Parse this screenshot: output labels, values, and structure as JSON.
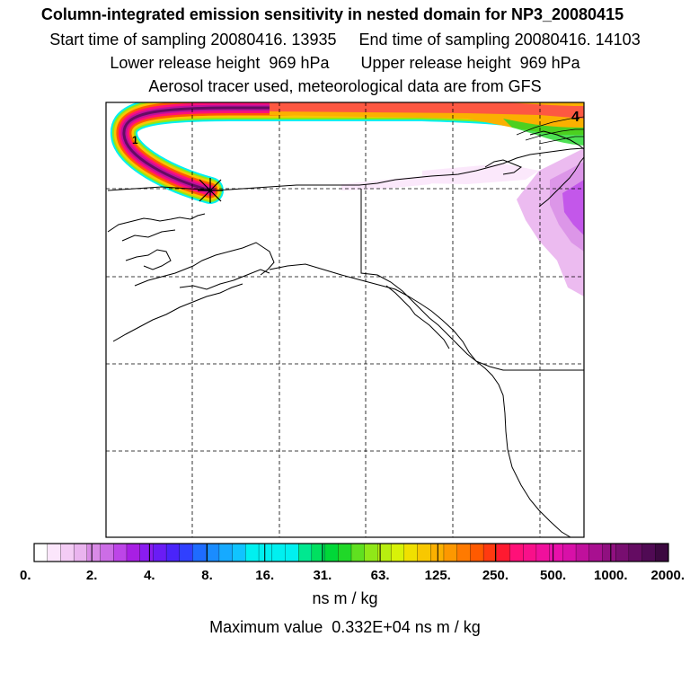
{
  "header": {
    "title": "Column-integrated emission sensitivity in nested domain for NP3_20080415",
    "sampling_line": "Start time of sampling 20080416. 13935     End time of sampling 20080416. 14103",
    "release_line": "Lower release height  969 hPa       Upper release height  969 hPa",
    "tracer_line": "Aerosol tracer used, meteorological data are from GFS"
  },
  "map": {
    "corner_label_left": "1",
    "corner_label_right": "4",
    "release_marker": "release-point"
  },
  "colorbar": {
    "tick_labels": [
      "0.",
      "2.",
      "4.",
      "8.",
      "16.",
      "31.",
      "63.",
      "125.",
      "250.",
      "500.",
      "1000.",
      "2000."
    ],
    "colors": [
      "#ffffff",
      "#fbe6fb",
      "#f4ccf5",
      "#eab4ef",
      "#d98be6",
      "#cc6de6",
      "#bd45e8",
      "#a81fe4",
      "#8a1cf0",
      "#6a1cf5",
      "#4a24fa",
      "#3040ff",
      "#1e6cff",
      "#1a8cff",
      "#16aaff",
      "#10c4ff",
      "#00f0f0",
      "#00f0f0",
      "#00f0f0",
      "#00f0f0",
      "#00e890",
      "#00e060",
      "#00d838",
      "#20d828",
      "#60e020",
      "#90e818",
      "#b8ee10",
      "#d8f208",
      "#f0e000",
      "#f8c800",
      "#fbb000",
      "#fd9800",
      "#ff7a00",
      "#ff5a00",
      "#ff3a10",
      "#ff1a30",
      "#ff1078",
      "#f8108a",
      "#f0109c",
      "#e810aa",
      "#d810a8",
      "#c0109c",
      "#a81090",
      "#901080",
      "#780e70",
      "#640c62",
      "#500a54",
      "#3c0840"
    ],
    "units": "ns m / kg",
    "maximum_text": "Maximum value  0.332E+04 ns m / kg"
  }
}
